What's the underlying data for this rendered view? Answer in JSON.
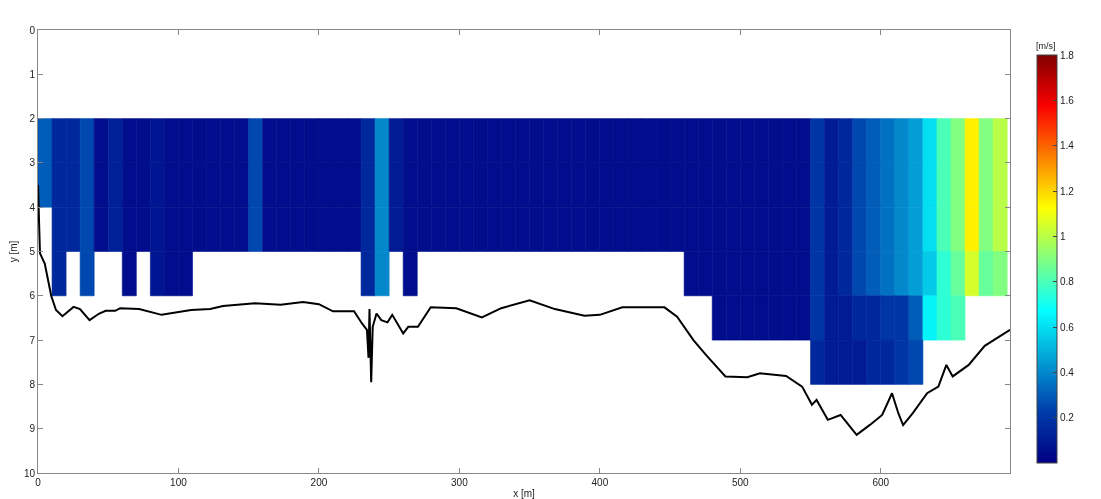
{
  "chart_data": {
    "type": "heatmap",
    "xlabel": "x [m]",
    "ylabel": "y [m]",
    "clabel": "[m/s]",
    "x": [
      5,
      15,
      25,
      35,
      45,
      55,
      65,
      75,
      85,
      95,
      105,
      115,
      125,
      135,
      145,
      155,
      165,
      175,
      185,
      195,
      205,
      215,
      225,
      235,
      245,
      255,
      265,
      275,
      285,
      295,
      305,
      315,
      325,
      335,
      345,
      355,
      365,
      375,
      385,
      395,
      405,
      415,
      425,
      435,
      445,
      455,
      465,
      475,
      485,
      495,
      505,
      515,
      525,
      535,
      545,
      555,
      565,
      575,
      585,
      595,
      605,
      615,
      625,
      635,
      645,
      655,
      665,
      675,
      685
    ],
    "y": [
      2.5,
      3.5,
      4.5,
      5.5,
      6.5,
      7.5
    ],
    "cells": [
      [
        0.3,
        0.15,
        0.15,
        0.25,
        0.05,
        0.12,
        0.05,
        0.05,
        0.08,
        0.05,
        0.05,
        0.05,
        0.05,
        0.05,
        0.05,
        0.25,
        0.05,
        0.05,
        0.05,
        0.05,
        0.05,
        0.05,
        0.05,
        0.15,
        0.4,
        0.1,
        0.05,
        0.05,
        0.05,
        0.05,
        0.05,
        0.05,
        0.05,
        0.05,
        0.05,
        0.05,
        0.05,
        0.05,
        0.05,
        0.05,
        0.05,
        0.05,
        0.05,
        0.05,
        0.05,
        0.05,
        0.05,
        0.05,
        0.05,
        0.05,
        0.05,
        0.05,
        0.05,
        0.05,
        0.05,
        0.2,
        0.1,
        0.15,
        0.25,
        0.3,
        0.35,
        0.4,
        0.45,
        0.6,
        0.8,
        0.9,
        1.15,
        0.9,
        1.0
      ],
      [
        0.3,
        0.15,
        0.15,
        0.25,
        0.05,
        0.12,
        0.05,
        0.05,
        0.08,
        0.05,
        0.05,
        0.05,
        0.05,
        0.05,
        0.05,
        0.25,
        0.05,
        0.05,
        0.05,
        0.05,
        0.05,
        0.05,
        0.05,
        0.15,
        0.4,
        0.1,
        0.05,
        0.05,
        0.05,
        0.05,
        0.05,
        0.05,
        0.05,
        0.05,
        0.05,
        0.05,
        0.05,
        0.05,
        0.05,
        0.05,
        0.05,
        0.05,
        0.05,
        0.05,
        0.05,
        0.05,
        0.05,
        0.05,
        0.05,
        0.05,
        0.05,
        0.05,
        0.05,
        0.05,
        0.05,
        0.2,
        0.1,
        0.15,
        0.25,
        0.3,
        0.35,
        0.4,
        0.45,
        0.6,
        0.8,
        0.9,
        1.15,
        0.9,
        1.0
      ],
      [
        null,
        0.15,
        0.15,
        0.25,
        0.05,
        0.12,
        0.05,
        0.05,
        0.08,
        0.05,
        0.05,
        0.05,
        0.05,
        0.05,
        0.05,
        0.25,
        0.05,
        0.05,
        0.05,
        0.05,
        0.05,
        0.05,
        0.05,
        0.15,
        0.4,
        0.1,
        0.05,
        0.05,
        0.05,
        0.05,
        0.05,
        0.05,
        0.05,
        0.05,
        0.05,
        0.05,
        0.05,
        0.05,
        0.05,
        0.05,
        0.05,
        0.05,
        0.05,
        0.05,
        0.05,
        0.05,
        0.05,
        0.05,
        0.05,
        0.05,
        0.05,
        0.05,
        0.05,
        0.05,
        0.05,
        0.2,
        0.1,
        0.15,
        0.25,
        0.3,
        0.35,
        0.4,
        0.45,
        0.6,
        0.8,
        0.9,
        1.15,
        0.9,
        1.0
      ],
      [
        null,
        0.15,
        null,
        0.25,
        null,
        null,
        0.05,
        null,
        0.08,
        0.05,
        0.05,
        null,
        null,
        null,
        null,
        null,
        null,
        null,
        null,
        null,
        null,
        null,
        null,
        0.15,
        0.4,
        null,
        0.05,
        null,
        null,
        null,
        null,
        null,
        null,
        null,
        null,
        null,
        null,
        null,
        null,
        null,
        null,
        null,
        null,
        null,
        null,
        null,
        0.05,
        0.05,
        0.05,
        0.05,
        0.05,
        0.05,
        0.05,
        0.05,
        0.05,
        0.2,
        0.1,
        0.15,
        0.25,
        0.3,
        0.35,
        0.4,
        0.45,
        0.55,
        0.75,
        0.85,
        1.05,
        0.85,
        0.9
      ],
      [
        null,
        null,
        null,
        null,
        null,
        null,
        null,
        null,
        null,
        null,
        null,
        null,
        null,
        null,
        null,
        null,
        null,
        null,
        null,
        null,
        null,
        null,
        null,
        null,
        null,
        null,
        null,
        null,
        null,
        null,
        null,
        null,
        null,
        null,
        null,
        null,
        null,
        null,
        null,
        null,
        null,
        null,
        null,
        null,
        null,
        null,
        null,
        null,
        0.05,
        0.05,
        0.05,
        0.05,
        0.05,
        0.05,
        0.05,
        0.2,
        0.1,
        0.1,
        0.15,
        0.15,
        0.2,
        0.2,
        0.3,
        0.65,
        0.75,
        0.8,
        null,
        null,
        null
      ],
      [
        null,
        null,
        null,
        null,
        null,
        null,
        null,
        null,
        null,
        null,
        null,
        null,
        null,
        null,
        null,
        null,
        null,
        null,
        null,
        null,
        null,
        null,
        null,
        null,
        null,
        null,
        null,
        null,
        null,
        null,
        null,
        null,
        null,
        null,
        null,
        null,
        null,
        null,
        null,
        null,
        null,
        null,
        null,
        null,
        null,
        null,
        null,
        null,
        null,
        null,
        null,
        null,
        null,
        null,
        null,
        0.15,
        0.1,
        0.1,
        0.1,
        0.15,
        0.15,
        0.2,
        0.25,
        null,
        null,
        null,
        null,
        null,
        null
      ]
    ],
    "clim": [
      0,
      1.8
    ],
    "cticks": [
      0.2,
      0.4,
      0.6,
      0.8,
      1,
      1.2,
      1.4,
      1.6,
      1.8
    ],
    "xlim": [
      0,
      692
    ],
    "xticks": [
      0,
      100,
      200,
      300,
      400,
      500,
      600
    ],
    "ylim": [
      10,
      0
    ],
    "yticks": [
      0,
      1,
      2,
      3,
      4,
      5,
      6,
      7,
      8,
      9,
      10
    ],
    "series": [
      {
        "type": "line",
        "color": "#000000",
        "x": [
          0,
          1.4,
          4.8,
          9.4,
          12.8,
          17.4,
          25.3,
          29.9,
          36.7,
          43.6,
          48.2,
          55,
          58.5,
          72,
          88,
          109,
          122.6,
          131.7,
          154.5,
          172.7,
          188.7,
          200,
          210,
          225,
          230.8,
          234.2,
          235.3,
          236,
          237.2,
          238.3,
          241,
          244.4,
          248.8,
          252.2,
          260,
          263.6,
          270.5,
          279.6,
          297.8,
          316,
          329.8,
          350,
          368,
          389,
          400,
          416,
          446,
          455,
          466.6,
          475.7,
          489.4,
          505,
          514,
          532.6,
          544,
          551,
          554.3,
          562.3,
          571.4,
          582.8,
          592,
          601,
          608,
          612.5,
          615.9,
          622.8,
          633,
          641,
          646.7,
          651.2,
          662.6,
          674,
          692
        ],
        "values": [
          3.5,
          5.04,
          5.27,
          6.0,
          6.32,
          6.46,
          6.25,
          6.3,
          6.55,
          6.4,
          6.34,
          6.34,
          6.28,
          6.3,
          6.43,
          6.32,
          6.3,
          6.23,
          6.17,
          6.2,
          6.14,
          6.19,
          6.35,
          6.35,
          6.63,
          6.77,
          7.4,
          6.3,
          7.95,
          6.7,
          6.4,
          6.55,
          6.6,
          6.43,
          6.85,
          6.7,
          6.7,
          6.26,
          6.28,
          6.49,
          6.28,
          6.1,
          6.3,
          6.45,
          6.43,
          6.26,
          6.26,
          6.47,
          7.0,
          7.34,
          7.82,
          7.84,
          7.75,
          7.81,
          8.05,
          8.46,
          8.35,
          8.8,
          8.69,
          9.14,
          8.92,
          8.69,
          8.2,
          8.65,
          8.92,
          8.65,
          8.2,
          8.05,
          7.56,
          7.82,
          7.56,
          7.13,
          6.77
        ]
      }
    ]
  }
}
